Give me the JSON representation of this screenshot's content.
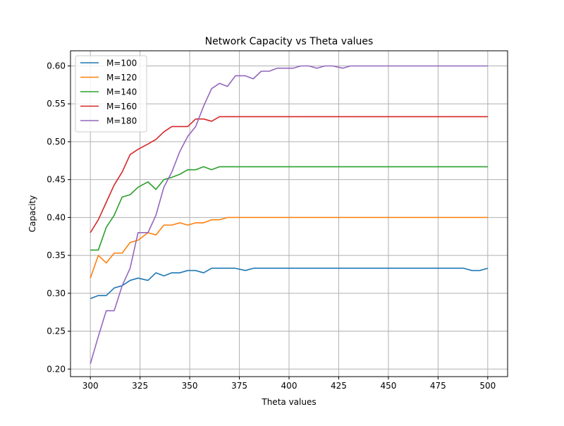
{
  "chart_data": {
    "type": "line",
    "title": "Network Capacity vs Theta values",
    "xlabel": "Theta values",
    "ylabel": "Capacity",
    "xlim": [
      290,
      510
    ],
    "ylim": [
      0.19,
      0.62
    ],
    "xticks": [
      300,
      325,
      350,
      375,
      400,
      425,
      450,
      475,
      500
    ],
    "yticks": [
      0.2,
      0.25,
      0.3,
      0.35,
      0.4,
      0.45,
      0.5,
      0.55,
      0.6
    ],
    "xtick_labels": [
      "300",
      "325",
      "350",
      "375",
      "400",
      "425",
      "450",
      "475",
      "500"
    ],
    "ytick_labels": [
      "0.20",
      "0.25",
      "0.30",
      "0.35",
      "0.40",
      "0.45",
      "0.50",
      "0.55",
      "0.60"
    ],
    "grid": true,
    "legend_position": "top-left",
    "x": [
      300,
      304,
      308,
      312,
      316,
      320,
      324,
      329,
      333,
      337,
      341,
      345,
      349,
      353,
      357,
      361,
      365,
      369,
      373,
      378,
      382,
      386,
      390,
      394,
      398,
      402,
      406,
      410,
      414,
      418,
      422,
      427,
      431,
      435,
      439,
      443,
      447,
      451,
      455,
      459,
      463,
      467,
      471,
      476,
      480,
      484,
      488,
      492,
      496,
      500
    ],
    "series": [
      {
        "name": "M=100",
        "color": "#1f77b4",
        "values": [
          0.293,
          0.297,
          0.297,
          0.307,
          0.31,
          0.317,
          0.32,
          0.317,
          0.327,
          0.323,
          0.327,
          0.327,
          0.33,
          0.33,
          0.327,
          0.333,
          0.333,
          0.333,
          0.333,
          0.33,
          0.333,
          0.333,
          0.333,
          0.333,
          0.333,
          0.333,
          0.333,
          0.333,
          0.333,
          0.333,
          0.333,
          0.333,
          0.333,
          0.333,
          0.333,
          0.333,
          0.333,
          0.333,
          0.333,
          0.333,
          0.333,
          0.333,
          0.333,
          0.333,
          0.333,
          0.333,
          0.333,
          0.33,
          0.33,
          0.333
        ]
      },
      {
        "name": "M=120",
        "color": "#ff7f0e",
        "values": [
          0.32,
          0.35,
          0.34,
          0.353,
          0.353,
          0.367,
          0.37,
          0.38,
          0.377,
          0.39,
          0.39,
          0.393,
          0.39,
          0.393,
          0.393,
          0.397,
          0.397,
          0.4,
          0.4,
          0.4,
          0.4,
          0.4,
          0.4,
          0.4,
          0.4,
          0.4,
          0.4,
          0.4,
          0.4,
          0.4,
          0.4,
          0.4,
          0.4,
          0.4,
          0.4,
          0.4,
          0.4,
          0.4,
          0.4,
          0.4,
          0.4,
          0.4,
          0.4,
          0.4,
          0.4,
          0.4,
          0.4,
          0.4,
          0.4,
          0.4
        ]
      },
      {
        "name": "M=140",
        "color": "#2ca02c",
        "values": [
          0.357,
          0.357,
          0.387,
          0.403,
          0.427,
          0.43,
          0.44,
          0.447,
          0.437,
          0.45,
          0.453,
          0.457,
          0.463,
          0.463,
          0.467,
          0.463,
          0.467,
          0.467,
          0.467,
          0.467,
          0.467,
          0.467,
          0.467,
          0.467,
          0.467,
          0.467,
          0.467,
          0.467,
          0.467,
          0.467,
          0.467,
          0.467,
          0.467,
          0.467,
          0.467,
          0.467,
          0.467,
          0.467,
          0.467,
          0.467,
          0.467,
          0.467,
          0.467,
          0.467,
          0.467,
          0.467,
          0.467,
          0.467,
          0.467,
          0.467
        ]
      },
      {
        "name": "M=160",
        "color": "#d62728",
        "values": [
          0.38,
          0.397,
          0.42,
          0.443,
          0.46,
          0.483,
          0.49,
          0.497,
          0.503,
          0.513,
          0.52,
          0.52,
          0.52,
          0.53,
          0.53,
          0.527,
          0.533,
          0.533,
          0.533,
          0.533,
          0.533,
          0.533,
          0.533,
          0.533,
          0.533,
          0.533,
          0.533,
          0.533,
          0.533,
          0.533,
          0.533,
          0.533,
          0.533,
          0.533,
          0.533,
          0.533,
          0.533,
          0.533,
          0.533,
          0.533,
          0.533,
          0.533,
          0.533,
          0.533,
          0.533,
          0.533,
          0.533,
          0.533,
          0.533,
          0.533
        ]
      },
      {
        "name": "M=180",
        "color": "#9467bd",
        "values": [
          0.207,
          0.243,
          0.277,
          0.277,
          0.31,
          0.333,
          0.38,
          0.38,
          0.403,
          0.44,
          0.46,
          0.487,
          0.507,
          0.52,
          0.547,
          0.57,
          0.577,
          0.573,
          0.587,
          0.587,
          0.583,
          0.593,
          0.593,
          0.597,
          0.597,
          0.597,
          0.6,
          0.6,
          0.597,
          0.6,
          0.6,
          0.597,
          0.6,
          0.6,
          0.6,
          0.6,
          0.6,
          0.6,
          0.6,
          0.6,
          0.6,
          0.6,
          0.6,
          0.6,
          0.6,
          0.6,
          0.6,
          0.6,
          0.6,
          0.6
        ]
      }
    ]
  }
}
